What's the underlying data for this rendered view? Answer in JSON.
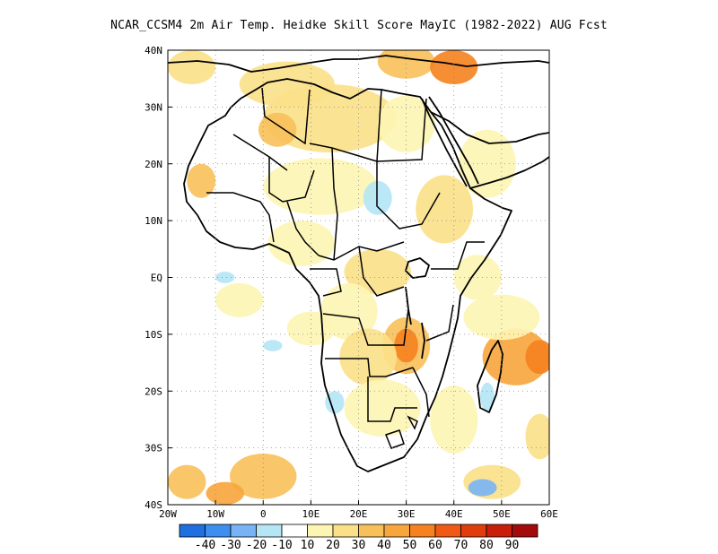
{
  "title": "NCAR_CCSM4 2m Air Temp. Heidke Skill Score MayIC (1982-2022) AUG Fcst",
  "map": {
    "lon_range": [
      -20,
      60
    ],
    "lat_range": [
      -40,
      40
    ],
    "lon_ticks": [
      {
        "value": -20,
        "label": "20W"
      },
      {
        "value": -10,
        "label": "10W"
      },
      {
        "value": 0,
        "label": "0"
      },
      {
        "value": 10,
        "label": "10E"
      },
      {
        "value": 20,
        "label": "20E"
      },
      {
        "value": 30,
        "label": "30E"
      },
      {
        "value": 40,
        "label": "40E"
      },
      {
        "value": 50,
        "label": "50E"
      },
      {
        "value": 60,
        "label": "60E"
      }
    ],
    "lat_ticks": [
      {
        "value": 40,
        "label": "40N"
      },
      {
        "value": 30,
        "label": "30N"
      },
      {
        "value": 20,
        "label": "20N"
      },
      {
        "value": 10,
        "label": "10N"
      },
      {
        "value": 0,
        "label": "EQ"
      },
      {
        "value": -10,
        "label": "10S"
      },
      {
        "value": -20,
        "label": "20S"
      },
      {
        "value": -30,
        "label": "30S"
      },
      {
        "value": -40,
        "label": "40S"
      }
    ],
    "grid": "dotted"
  },
  "colorbar": {
    "colors": [
      "#1f6fe0",
      "#3c8ff0",
      "#78b4f5",
      "#b4e6f5",
      "#ffffff",
      "#fdf5b4",
      "#fbe088",
      "#f8c05a",
      "#f7a53c",
      "#f5821e",
      "#f05a14",
      "#e03c0c",
      "#c81e0a",
      "#a50a0a"
    ],
    "labels": [
      "-40",
      "-30",
      "-20",
      "-10",
      "10",
      "20",
      "30",
      "40",
      "50",
      "60",
      "70",
      "80",
      "90"
    ]
  },
  "skill_patches": [
    {
      "lon": -15,
      "lat": 37,
      "rx": 5,
      "ry": 3,
      "level": 6
    },
    {
      "lon": 5,
      "lat": 34,
      "rx": 10,
      "ry": 4,
      "level": 6
    },
    {
      "lon": 30,
      "lat": 38,
      "rx": 6,
      "ry": 3,
      "level": 7
    },
    {
      "lon": 40,
      "lat": 37,
      "rx": 5,
      "ry": 3,
      "level": 9
    },
    {
      "lon": 14,
      "lat": 28,
      "rx": 14,
      "ry": 6,
      "level": 6
    },
    {
      "lon": 3,
      "lat": 26,
      "rx": 4,
      "ry": 3,
      "level": 7
    },
    {
      "lon": 30,
      "lat": 27,
      "rx": 6,
      "ry": 5,
      "level": 5
    },
    {
      "lon": -13,
      "lat": 17,
      "rx": 3,
      "ry": 3,
      "level": 7
    },
    {
      "lon": 12,
      "lat": 16,
      "rx": 12,
      "ry": 5,
      "level": 5
    },
    {
      "lon": 38,
      "lat": 12,
      "rx": 6,
      "ry": 6,
      "level": 6
    },
    {
      "lon": 47,
      "lat": 20,
      "rx": 6,
      "ry": 6,
      "level": 5
    },
    {
      "lon": 8,
      "lat": 6,
      "rx": 7,
      "ry": 4,
      "level": 5
    },
    {
      "lon": 24,
      "lat": 1,
      "rx": 7,
      "ry": 4,
      "level": 6
    },
    {
      "lon": 18,
      "lat": -6,
      "rx": 6,
      "ry": 5,
      "level": 5
    },
    {
      "lon": 30,
      "lat": -12,
      "rx": 5,
      "ry": 5,
      "level": 7
    },
    {
      "lon": 30,
      "lat": -12,
      "rx": 2.5,
      "ry": 3,
      "level": 9
    },
    {
      "lon": 22,
      "lat": -14,
      "rx": 6,
      "ry": 5,
      "level": 6
    },
    {
      "lon": 53,
      "lat": -14,
      "rx": 7,
      "ry": 5,
      "level": 8
    },
    {
      "lon": 58,
      "lat": -14,
      "rx": 3,
      "ry": 3,
      "level": 9
    },
    {
      "lon": 50,
      "lat": -7,
      "rx": 8,
      "ry": 4,
      "level": 5
    },
    {
      "lon": 25,
      "lat": -23,
      "rx": 8,
      "ry": 5,
      "level": 5
    },
    {
      "lon": -16,
      "lat": -36,
      "rx": 4,
      "ry": 3,
      "level": 7
    },
    {
      "lon": 0,
      "lat": -35,
      "rx": 7,
      "ry": 4,
      "level": 7
    },
    {
      "lon": -8,
      "lat": -38,
      "rx": 4,
      "ry": 2,
      "level": 8
    },
    {
      "lon": 48,
      "lat": -36,
      "rx": 6,
      "ry": 3,
      "level": 6
    },
    {
      "lon": 58,
      "lat": -28,
      "rx": 3,
      "ry": 4,
      "level": 6
    },
    {
      "lon": 10,
      "lat": -9,
      "rx": 5,
      "ry": 3,
      "level": 5
    },
    {
      "lon": -5,
      "lat": -4,
      "rx": 5,
      "ry": 3,
      "level": 5
    },
    {
      "lon": 45,
      "lat": 0,
      "rx": 5,
      "ry": 4,
      "level": 5
    },
    {
      "lon": 40,
      "lat": -25,
      "rx": 5,
      "ry": 6,
      "level": 5
    },
    {
      "lon": 24,
      "lat": 14,
      "rx": 3,
      "ry": 3,
      "level": 3
    },
    {
      "lon": 47,
      "lat": -21,
      "rx": 1.5,
      "ry": 2.5,
      "level": 3
    },
    {
      "lon": 15,
      "lat": -22,
      "rx": 2,
      "ry": 2,
      "level": 3
    },
    {
      "lon": -8,
      "lat": 0,
      "rx": 2,
      "ry": 1,
      "level": 3
    },
    {
      "lon": 46,
      "lat": -37,
      "rx": 3,
      "ry": 1.5,
      "level": 2
    },
    {
      "lon": 2,
      "lat": -12,
      "rx": 2,
      "ry": 1,
      "level": 3
    }
  ]
}
